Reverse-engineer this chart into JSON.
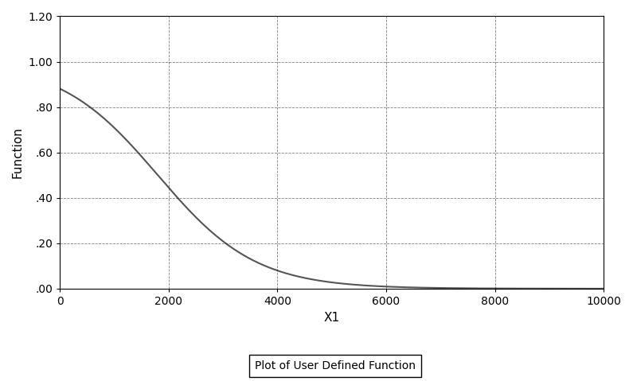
{
  "title": "Plot of User Defined Function",
  "xlabel": "X1",
  "ylabel": "Function",
  "xlim": [
    0,
    10000
  ],
  "ylim": [
    0.0,
    1.2
  ],
  "xticks": [
    0,
    2000,
    4000,
    6000,
    8000,
    10000
  ],
  "yticks": [
    0.0,
    0.2,
    0.4,
    0.6,
    0.8,
    1.0,
    1.2
  ],
  "ytick_labels": [
    ".00",
    ".20",
    ".40",
    ".60",
    ".80",
    "1.00",
    "1.20"
  ],
  "curve_color": "#555555",
  "curve_linewidth": 1.5,
  "grid_color": "#000000",
  "grid_linestyle": "--",
  "grid_alpha": 0.5,
  "background_color": "#ffffff",
  "logistic_mu": 1800,
  "logistic_s": 900,
  "figsize": [
    7.95,
    4.79
  ],
  "dpi": 100
}
